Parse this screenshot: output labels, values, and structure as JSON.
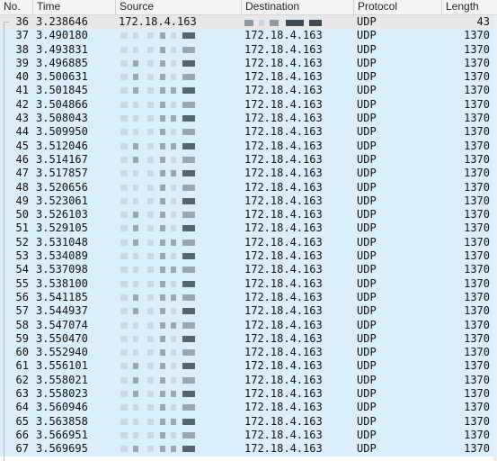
{
  "columns": {
    "no": "No.",
    "time": "Time",
    "source": "Source",
    "destination": "Destination",
    "protocol": "Protocol",
    "length": "Length"
  },
  "colors": {
    "row_bg": "#dbeefb",
    "selected_row_bg": "#e8e8e8",
    "redaction_dark": "#3f4a55",
    "redaction_mid": "#8d9aa6",
    "redaction_light": "#c9d3db"
  },
  "rows": [
    {
      "no": "36",
      "time": "3.238646",
      "source": "172.18.4.163",
      "destination": "",
      "protocol": "UDP",
      "length": "43"
    },
    {
      "no": "37",
      "time": "3.490180",
      "source": "",
      "destination": "172.18.4.163",
      "protocol": "UDP",
      "length": "1370"
    },
    {
      "no": "38",
      "time": "3.493831",
      "source": "",
      "destination": "172.18.4.163",
      "protocol": "UDP",
      "length": "1370"
    },
    {
      "no": "39",
      "time": "3.496885",
      "source": "",
      "destination": "172.18.4.163",
      "protocol": "UDP",
      "length": "1370"
    },
    {
      "no": "40",
      "time": "3.500631",
      "source": "",
      "destination": "172.18.4.163",
      "protocol": "UDP",
      "length": "1370"
    },
    {
      "no": "41",
      "time": "3.501845",
      "source": "",
      "destination": "172.18.4.163",
      "protocol": "UDP",
      "length": "1370"
    },
    {
      "no": "42",
      "time": "3.504866",
      "source": "",
      "destination": "172.18.4.163",
      "protocol": "UDP",
      "length": "1370"
    },
    {
      "no": "43",
      "time": "3.508043",
      "source": "",
      "destination": "172.18.4.163",
      "protocol": "UDP",
      "length": "1370"
    },
    {
      "no": "44",
      "time": "3.509950",
      "source": "",
      "destination": "172.18.4.163",
      "protocol": "UDP",
      "length": "1370"
    },
    {
      "no": "45",
      "time": "3.512046",
      "source": "",
      "destination": "172.18.4.163",
      "protocol": "UDP",
      "length": "1370"
    },
    {
      "no": "46",
      "time": "3.514167",
      "source": "",
      "destination": "172.18.4.163",
      "protocol": "UDP",
      "length": "1370"
    },
    {
      "no": "47",
      "time": "3.517857",
      "source": "",
      "destination": "172.18.4.163",
      "protocol": "UDP",
      "length": "1370"
    },
    {
      "no": "48",
      "time": "3.520656",
      "source": "",
      "destination": "172.18.4.163",
      "protocol": "UDP",
      "length": "1370"
    },
    {
      "no": "49",
      "time": "3.523061",
      "source": "",
      "destination": "172.18.4.163",
      "protocol": "UDP",
      "length": "1370"
    },
    {
      "no": "50",
      "time": "3.526103",
      "source": "",
      "destination": "172.18.4.163",
      "protocol": "UDP",
      "length": "1370"
    },
    {
      "no": "51",
      "time": "3.529105",
      "source": "",
      "destination": "172.18.4.163",
      "protocol": "UDP",
      "length": "1370"
    },
    {
      "no": "52",
      "time": "3.531048",
      "source": "",
      "destination": "172.18.4.163",
      "protocol": "UDP",
      "length": "1370"
    },
    {
      "no": "53",
      "time": "3.534089",
      "source": "",
      "destination": "172.18.4.163",
      "protocol": "UDP",
      "length": "1370"
    },
    {
      "no": "54",
      "time": "3.537098",
      "source": "",
      "destination": "172.18.4.163",
      "protocol": "UDP",
      "length": "1370"
    },
    {
      "no": "55",
      "time": "3.538100",
      "source": "",
      "destination": "172.18.4.163",
      "protocol": "UDP",
      "length": "1370"
    },
    {
      "no": "56",
      "time": "3.541185",
      "source": "",
      "destination": "172.18.4.163",
      "protocol": "UDP",
      "length": "1370"
    },
    {
      "no": "57",
      "time": "3.544937",
      "source": "",
      "destination": "172.18.4.163",
      "protocol": "UDP",
      "length": "1370"
    },
    {
      "no": "58",
      "time": "3.547074",
      "source": "",
      "destination": "172.18.4.163",
      "protocol": "UDP",
      "length": "1370"
    },
    {
      "no": "59",
      "time": "3.550470",
      "source": "",
      "destination": "172.18.4.163",
      "protocol": "UDP",
      "length": "1370"
    },
    {
      "no": "60",
      "time": "3.552940",
      "source": "",
      "destination": "172.18.4.163",
      "protocol": "UDP",
      "length": "1370"
    },
    {
      "no": "61",
      "time": "3.556101",
      "source": "",
      "destination": "172.18.4.163",
      "protocol": "UDP",
      "length": "1370"
    },
    {
      "no": "62",
      "time": "3.558021",
      "source": "",
      "destination": "172.18.4.163",
      "protocol": "UDP",
      "length": "1370"
    },
    {
      "no": "63",
      "time": "3.558023",
      "source": "",
      "destination": "172.18.4.163",
      "protocol": "UDP",
      "length": "1370"
    },
    {
      "no": "64",
      "time": "3.560946",
      "source": "",
      "destination": "172.18.4.163",
      "protocol": "UDP",
      "length": "1370"
    },
    {
      "no": "65",
      "time": "3.563858",
      "source": "",
      "destination": "172.18.4.163",
      "protocol": "UDP",
      "length": "1370"
    },
    {
      "no": "66",
      "time": "3.566951",
      "source": "",
      "destination": "172.18.4.163",
      "protocol": "UDP",
      "length": "1370"
    },
    {
      "no": "67",
      "time": "3.569695",
      "source": "",
      "destination": "172.18.4.163",
      "protocol": "UDP",
      "length": "1370"
    }
  ]
}
